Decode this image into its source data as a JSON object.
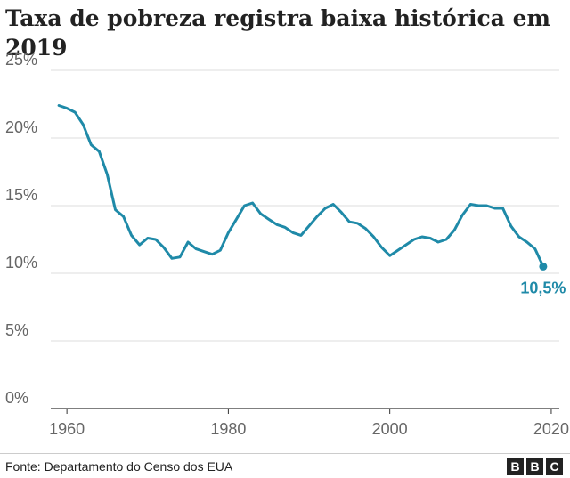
{
  "header": {
    "title": "Taxa de pobreza registra baixa histórica em 2019"
  },
  "chart_data": {
    "type": "line",
    "title": "Taxa de pobreza registra baixa histórica em 2019",
    "xlabel": "",
    "ylabel": "",
    "xlim": [
      1958,
      2021
    ],
    "ylim": [
      0,
      25
    ],
    "x_ticks": [
      1960,
      1980,
      2000,
      2020
    ],
    "y_ticks": [
      0,
      5,
      10,
      15,
      20,
      25
    ],
    "y_tick_labels": [
      "0%",
      "5%",
      "10%",
      "15%",
      "20%",
      "25%"
    ],
    "grid": true,
    "series": [
      {
        "color": "#1f8aa8",
        "x": [
          1959,
          1960,
          1961,
          1962,
          1963,
          1964,
          1965,
          1966,
          1967,
          1968,
          1969,
          1970,
          1971,
          1972,
          1973,
          1974,
          1975,
          1976,
          1977,
          1978,
          1979,
          1980,
          1981,
          1982,
          1983,
          1984,
          1985,
          1986,
          1987,
          1988,
          1989,
          1990,
          1991,
          1992,
          1993,
          1994,
          1995,
          1996,
          1997,
          1998,
          1999,
          2000,
          2001,
          2002,
          2003,
          2004,
          2005,
          2006,
          2007,
          2008,
          2009,
          2010,
          2011,
          2012,
          2013,
          2014,
          2015,
          2016,
          2017,
          2018,
          2019
        ],
        "values": [
          22.4,
          22.2,
          21.9,
          21.0,
          19.5,
          19.0,
          17.3,
          14.7,
          14.2,
          12.8,
          12.1,
          12.6,
          12.5,
          11.9,
          11.1,
          11.2,
          12.3,
          11.8,
          11.6,
          11.4,
          11.7,
          13.0,
          14.0,
          15.0,
          15.2,
          14.4,
          14.0,
          13.6,
          13.4,
          13.0,
          12.8,
          13.5,
          14.2,
          14.8,
          15.1,
          14.5,
          13.8,
          13.7,
          13.3,
          12.7,
          11.9,
          11.3,
          11.7,
          12.1,
          12.5,
          12.7,
          12.6,
          12.3,
          12.5,
          13.2,
          14.3,
          15.1,
          15.0,
          15.0,
          14.8,
          14.8,
          13.5,
          12.7,
          12.3,
          11.8,
          10.5
        ]
      }
    ],
    "end_label": "10,5%"
  },
  "footer": {
    "source": "Fonte: Departamento do Censo dos EUA",
    "logo_letters": [
      "B",
      "B",
      "C"
    ]
  },
  "colors": {
    "line": "#1f8aa8",
    "grid": "#dddddd",
    "axis": "#333333",
    "tick_text": "#666666"
  }
}
